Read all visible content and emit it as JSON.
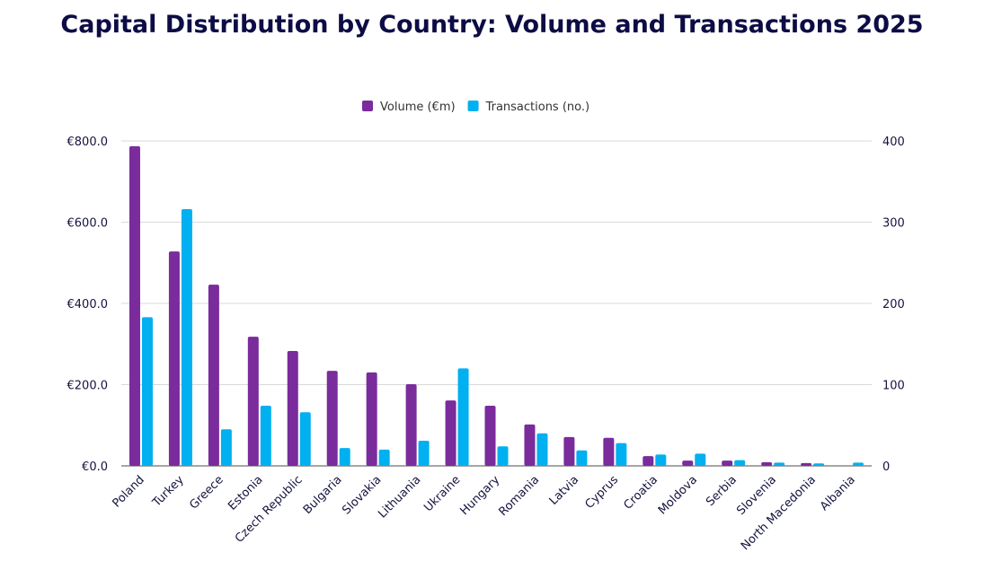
{
  "chart_data": {
    "type": "bar",
    "title": "Capital Distribution by Country: Volume and Transactions 2025",
    "categories": [
      "Poland",
      "Turkey",
      "Greece",
      "Estonia",
      "Czech Republic",
      "Bulgaria",
      "Slovakia",
      "Lithuania",
      "Ukraine",
      "Hungary",
      "Romania",
      "Latvia",
      "Cyprus",
      "Croatia",
      "Moldova",
      "Serbia",
      "Slovenia",
      "North Macedonia",
      "Albania"
    ],
    "series": [
      {
        "name": "Volume (€m)",
        "axis": "left",
        "color": "#7a2b9c",
        "values": [
          787,
          528,
          446,
          318,
          283,
          234,
          230,
          201,
          161,
          148,
          102,
          71,
          69,
          24,
          13,
          13,
          9,
          7,
          0
        ]
      },
      {
        "name": "Transactions (no.)",
        "axis": "right",
        "color": "#00b0f0",
        "values": [
          183,
          316,
          45,
          74,
          66,
          22,
          20,
          31,
          120,
          24,
          40,
          19,
          28,
          14,
          15,
          7,
          4,
          3,
          4
        ]
      }
    ],
    "y_left": {
      "ylim": [
        0,
        800
      ],
      "ticks": [
        "€0.0",
        "€200.0",
        "€400.0",
        "€600.0",
        "€800.0"
      ]
    },
    "y_right": {
      "ylim": [
        0,
        400
      ],
      "ticks": [
        "0",
        "100",
        "200",
        "300",
        "400"
      ]
    },
    "grid": true,
    "legend": "top-center"
  }
}
